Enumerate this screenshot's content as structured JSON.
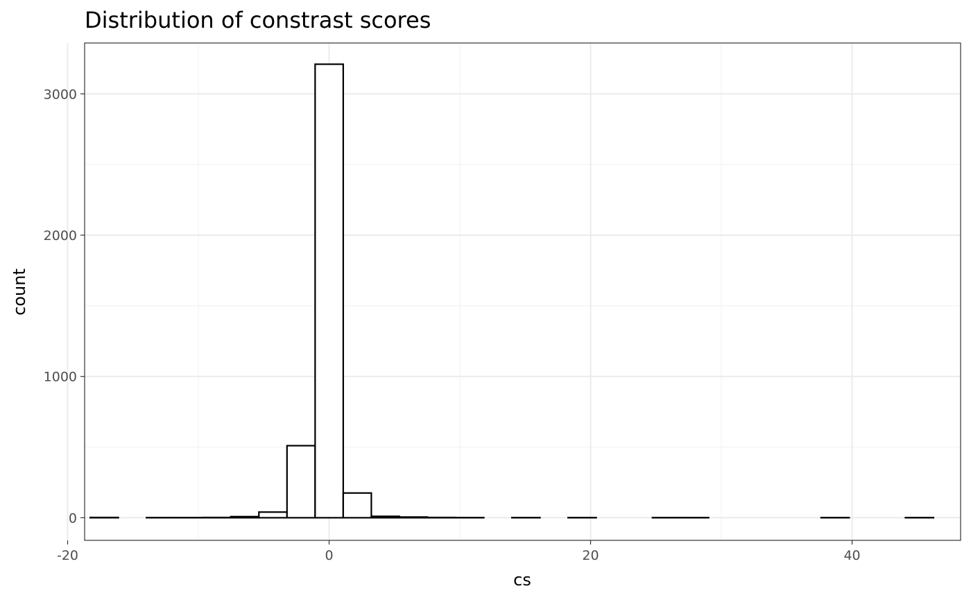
{
  "chart_data": {
    "type": "bar",
    "title": "Distribution of constrast scores",
    "xlabel": "cs",
    "ylabel": "count",
    "xlim": [
      -18.7,
      48.3
    ],
    "ylim": [
      -160,
      3360
    ],
    "x_ticks": [
      -20,
      0,
      20,
      40
    ],
    "x_tick_labels": [
      "-20",
      "0",
      "20",
      "40"
    ],
    "y_ticks": [
      0,
      1000,
      2000,
      3000
    ],
    "y_tick_labels": [
      "0",
      "1000",
      "2000",
      "3000"
    ],
    "grid": true,
    "bin_width": 2.15,
    "bins": [
      {
        "x0": -18.27,
        "x1": -16.12,
        "count": 2
      },
      {
        "x0": -16.12,
        "x1": -13.97,
        "count": 0
      },
      {
        "x0": -13.97,
        "x1": -11.82,
        "count": 1
      },
      {
        "x0": -11.82,
        "x1": -9.67,
        "count": 1
      },
      {
        "x0": -9.67,
        "x1": -7.52,
        "count": 2
      },
      {
        "x0": -7.52,
        "x1": -5.37,
        "count": 8
      },
      {
        "x0": -5.37,
        "x1": -3.22,
        "count": 40
      },
      {
        "x0": -3.22,
        "x1": -1.07,
        "count": 510
      },
      {
        "x0": -1.07,
        "x1": 1.08,
        "count": 3210
      },
      {
        "x0": 1.08,
        "x1": 3.23,
        "count": 175
      },
      {
        "x0": 3.23,
        "x1": 5.38,
        "count": 10
      },
      {
        "x0": 5.38,
        "x1": 7.53,
        "count": 5
      },
      {
        "x0": 7.53,
        "x1": 9.68,
        "count": 2
      },
      {
        "x0": 9.68,
        "x1": 11.83,
        "count": 1
      },
      {
        "x0": 11.83,
        "x1": 13.98,
        "count": 0
      },
      {
        "x0": 13.98,
        "x1": 16.13,
        "count": 1
      },
      {
        "x0": 16.13,
        "x1": 18.28,
        "count": 0
      },
      {
        "x0": 18.28,
        "x1": 20.43,
        "count": 1
      },
      {
        "x0": 20.43,
        "x1": 22.58,
        "count": 0
      },
      {
        "x0": 22.58,
        "x1": 24.73,
        "count": 0
      },
      {
        "x0": 24.73,
        "x1": 26.88,
        "count": 1
      },
      {
        "x0": 26.88,
        "x1": 29.03,
        "count": 1
      },
      {
        "x0": 29.03,
        "x1": 31.18,
        "count": 0
      },
      {
        "x0": 31.18,
        "x1": 33.33,
        "count": 0
      },
      {
        "x0": 33.33,
        "x1": 35.48,
        "count": 0
      },
      {
        "x0": 35.48,
        "x1": 37.63,
        "count": 0
      },
      {
        "x0": 37.63,
        "x1": 39.78,
        "count": 1
      },
      {
        "x0": 39.78,
        "x1": 41.93,
        "count": 0
      },
      {
        "x0": 41.93,
        "x1": 44.08,
        "count": 0
      },
      {
        "x0": 44.08,
        "x1": 46.23,
        "count": 1
      }
    ],
    "colors": {
      "bar_fill": "#ffffff",
      "bar_outline": "#000000",
      "grid": "#ebebeb",
      "panel_border": "#333333",
      "tick_text": "#4d4d4d"
    }
  }
}
